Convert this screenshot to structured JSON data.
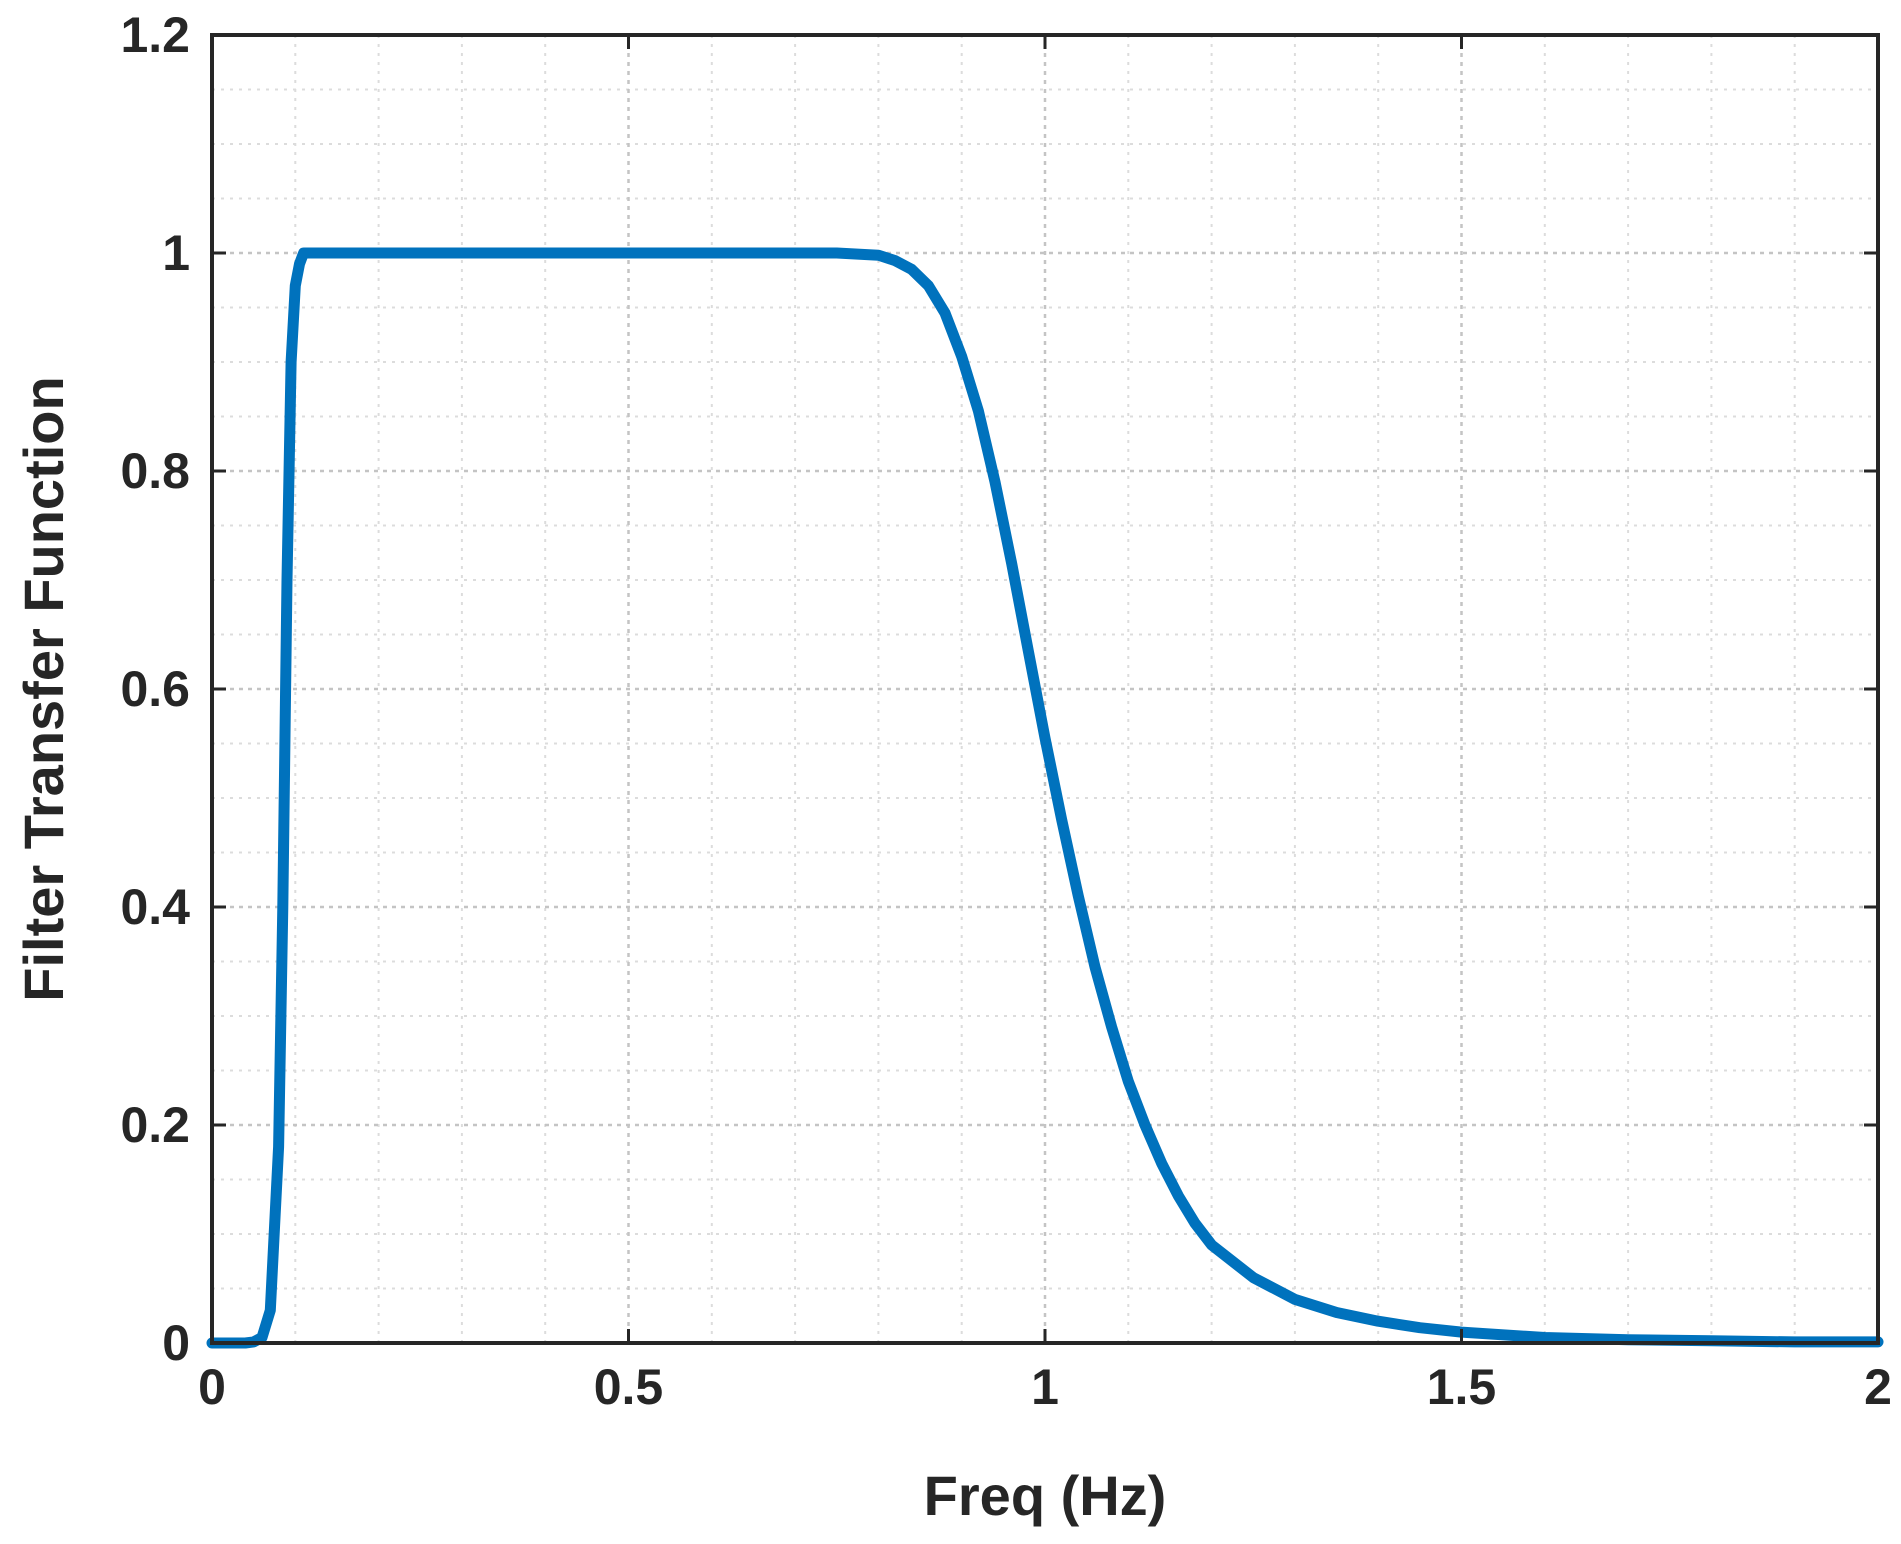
{
  "chart_data": {
    "type": "line",
    "title": "",
    "xlabel": "Freq (Hz)",
    "ylabel": "Filter Transfer Function",
    "xlim": [
      0,
      2
    ],
    "ylim": [
      0,
      1.2
    ],
    "x_ticks": [
      0,
      0.5,
      1,
      1.5,
      2
    ],
    "x_tick_labels": [
      "0",
      "0.5",
      "1",
      "1.5",
      "2"
    ],
    "y_ticks": [
      0,
      0.2,
      0.4,
      0.6,
      0.8,
      1,
      1.2
    ],
    "y_tick_labels": [
      "0",
      "0.2",
      "0.4",
      "0.6",
      "0.8",
      "1",
      "1.2"
    ],
    "grid": true,
    "minor_grid": true,
    "legend": "none",
    "series": [
      {
        "color": "#0072BD",
        "x": [
          0,
          0.02,
          0.04,
          0.05,
          0.06,
          0.07,
          0.08,
          0.085,
          0.09,
          0.095,
          0.1,
          0.105,
          0.11,
          0.12,
          0.13,
          0.15,
          0.2,
          0.3,
          0.4,
          0.5,
          0.6,
          0.7,
          0.75,
          0.8,
          0.82,
          0.84,
          0.86,
          0.88,
          0.9,
          0.92,
          0.94,
          0.96,
          0.98,
          1.0,
          1.02,
          1.04,
          1.06,
          1.08,
          1.1,
          1.12,
          1.14,
          1.16,
          1.18,
          1.2,
          1.25,
          1.3,
          1.35,
          1.4,
          1.45,
          1.5,
          1.6,
          1.7,
          1.8,
          1.9,
          2.0
        ],
        "y": [
          0,
          0,
          0,
          0.001,
          0.005,
          0.03,
          0.18,
          0.4,
          0.7,
          0.9,
          0.97,
          0.99,
          1.0,
          1.0,
          1.0,
          1.0,
          1.0,
          1.0,
          1.0,
          1.0,
          1.0,
          1.0,
          1.0,
          0.998,
          0.993,
          0.985,
          0.97,
          0.945,
          0.905,
          0.855,
          0.79,
          0.715,
          0.635,
          0.555,
          0.48,
          0.41,
          0.345,
          0.29,
          0.24,
          0.2,
          0.165,
          0.135,
          0.11,
          0.09,
          0.06,
          0.04,
          0.028,
          0.02,
          0.014,
          0.01,
          0.005,
          0.003,
          0.002,
          0.001,
          0.001
        ]
      }
    ]
  }
}
